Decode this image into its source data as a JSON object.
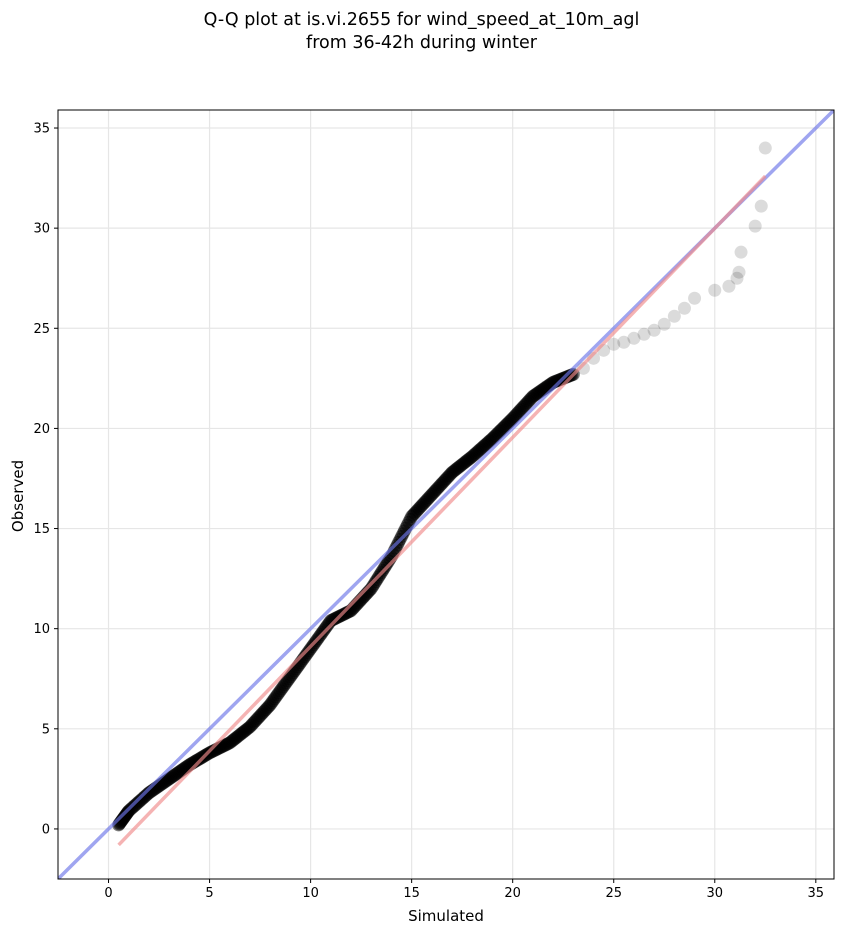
{
  "title_line1": "Q-Q plot at is.vi.2655 for wind_speed_at_10m_agl",
  "title_line2": "from 36-42h during winter",
  "chart_data": {
    "type": "scatter",
    "title": "Q-Q plot at is.vi.2655 for wind_speed_at_10m_agl\nfrom 36-42h during winter",
    "xlabel": "Simulated",
    "ylabel": "Observed",
    "xlim": [
      -2.5,
      35.9
    ],
    "ylim": [
      -2.5,
      35.9
    ],
    "xticks": [
      0,
      5,
      10,
      15,
      20,
      25,
      30,
      35
    ],
    "yticks": [
      0,
      5,
      10,
      15,
      20,
      25,
      30,
      35
    ],
    "grid": true,
    "colors": {
      "points": "#000000",
      "identity_line": "#6b74e8",
      "fit_line": "#f08a8a"
    },
    "reference_lines": [
      {
        "kind": "identity",
        "x": [
          -2.5,
          35.9
        ],
        "y": [
          -2.5,
          35.9
        ]
      },
      {
        "kind": "fit",
        "x": [
          0.5,
          32.5
        ],
        "y": [
          -0.8,
          32.6
        ]
      }
    ],
    "quantile_anchors": {
      "x": [
        0.5,
        1.0,
        2.0,
        3.0,
        4.0,
        5.0,
        6.0,
        7.0,
        8.0,
        9.0,
        10.0,
        11.0,
        12.0,
        13.0,
        14.0,
        15.0,
        16.0,
        17.0,
        18.0,
        19.0,
        20.0,
        21.0,
        22.0,
        23.0
      ],
      "y": [
        0.2,
        0.9,
        1.8,
        2.5,
        3.2,
        3.8,
        4.3,
        5.1,
        6.2,
        7.6,
        9.0,
        10.4,
        10.9,
        12.0,
        13.6,
        15.6,
        16.7,
        17.8,
        18.6,
        19.5,
        20.5,
        21.6,
        22.3,
        22.7
      ]
    },
    "tail_points": {
      "x": [
        23.5,
        24.0,
        24.5,
        25.0,
        25.5,
        26.0,
        26.5,
        27.0,
        27.5,
        28.0,
        28.5,
        29.0,
        30.0,
        30.7,
        31.1,
        31.2,
        31.3,
        32.0,
        32.3,
        32.5
      ],
      "y": [
        23.0,
        23.5,
        23.9,
        24.2,
        24.3,
        24.5,
        24.7,
        24.9,
        25.2,
        25.6,
        26.0,
        26.5,
        26.9,
        27.1,
        27.5,
        27.8,
        28.8,
        30.1,
        31.1,
        34.0
      ]
    }
  }
}
